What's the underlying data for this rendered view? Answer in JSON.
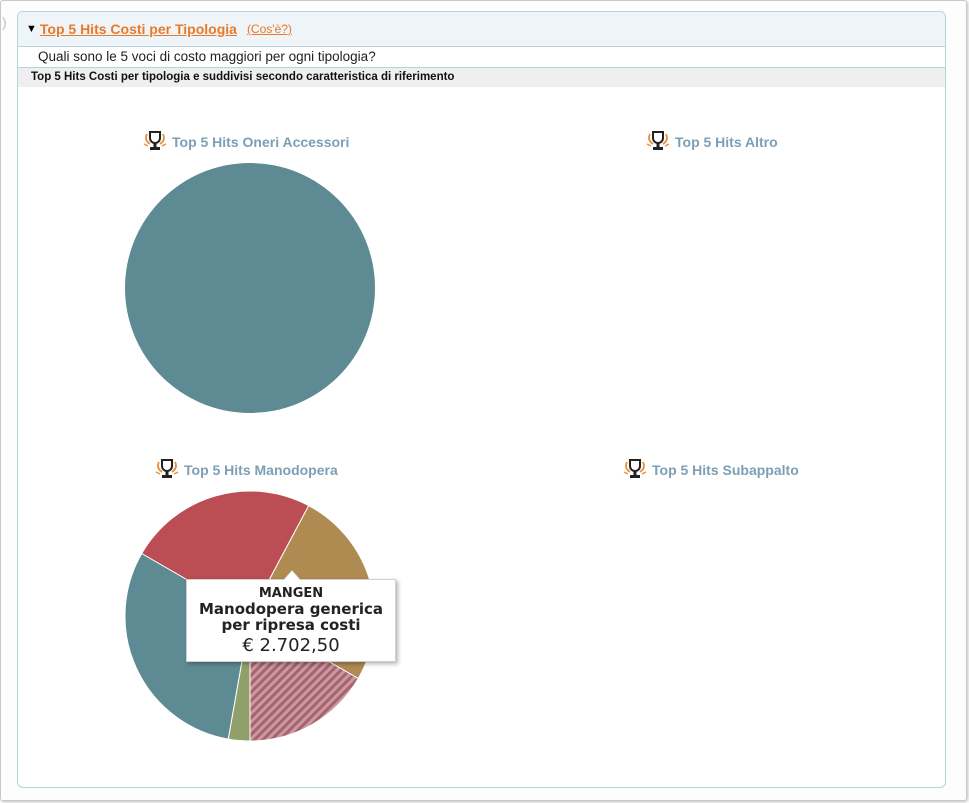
{
  "panel": {
    "title": "Top 5 Hits Costi per Tipologia",
    "whatis_link": "(Cos'è?)",
    "question": "Quali sono le 5 voci di costo maggiori per ogni tipologia?",
    "subheader": "Top 5 Hits Costi per tipologia e suddivisi secondo caratteristica di riferimento"
  },
  "charts": [
    {
      "title": "Top 5 Hits Oneri Accessori",
      "icon": "trophy-icon"
    },
    {
      "title": "Top 5 Hits Altro",
      "icon": "trophy-icon"
    },
    {
      "title": "Top 5 Hits Manodopera",
      "icon": "trophy-icon"
    },
    {
      "title": "Top 5 Hits Subappalto",
      "icon": "trophy-icon"
    }
  ],
  "tooltip": {
    "code": "MANGEN",
    "description": "Manodopera generica per ripresa costi",
    "value": "€ 2.702,50"
  },
  "chart_data": [
    {
      "type": "pie",
      "title": "Top 5 Hits Oneri Accessori",
      "slices": [
        {
          "value": 100,
          "color": "#5e8a93"
        }
      ]
    },
    {
      "type": "pie",
      "title": "Top 5 Hits Altro",
      "slices": []
    },
    {
      "type": "pie",
      "title": "Top 5 Hits Manodopera",
      "slices": [
        {
          "value": 27.5,
          "color": "#5e8a93"
        },
        {
          "value": 22.0,
          "color": "#bb4e54"
        },
        {
          "value": 23.0,
          "color": "#b08b51"
        },
        {
          "value": 15.0,
          "color": "#a8636f",
          "label": "MANGEN",
          "hatched": true
        },
        {
          "value": 2.5,
          "color": "#8fa06a"
        }
      ],
      "start_angle_deg": 100
    },
    {
      "type": "pie",
      "title": "Top 5 Hits Subappalto",
      "slices": []
    }
  ]
}
